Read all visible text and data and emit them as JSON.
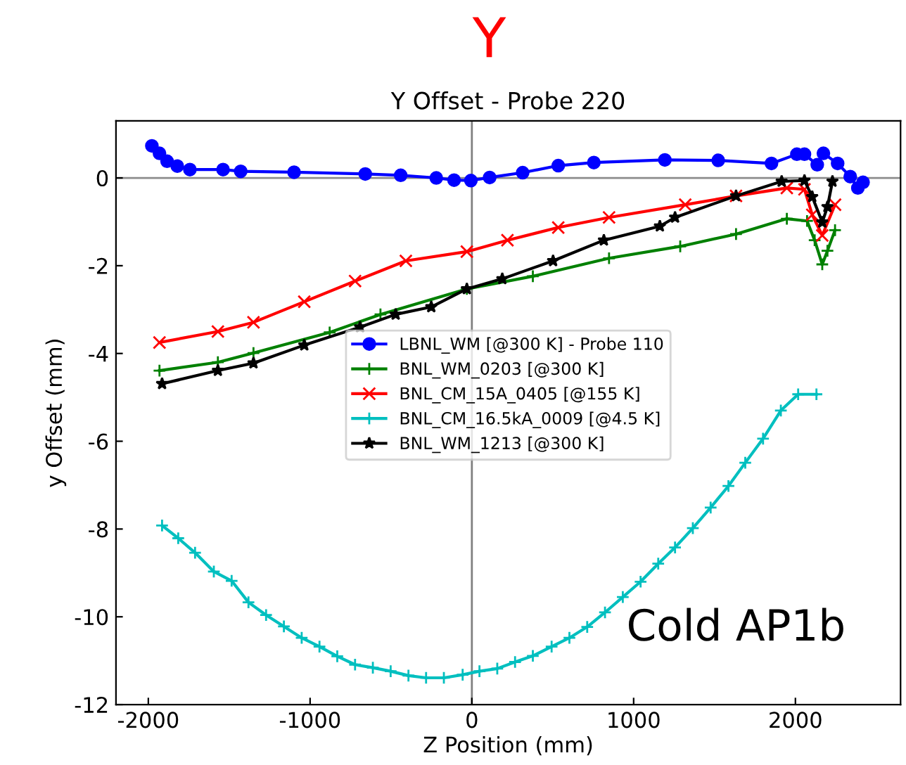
{
  "chart_data": {
    "type": "line",
    "title": "Y Offset - Probe 220",
    "xlabel": "Z Position (mm)",
    "ylabel": "y Offset (mm)",
    "annotations": [
      "Y",
      "Cold AP1b"
    ],
    "xlim": [
      -2200,
      2650
    ],
    "ylim": [
      -12,
      1.3
    ],
    "xticks": [
      -2000,
      -1000,
      0,
      1000,
      2000
    ],
    "yticks": [
      -12,
      -10,
      -8,
      -6,
      -4,
      -2,
      0
    ],
    "grid": false,
    "legend": "center",
    "ref_lines": [
      {
        "axis": "x",
        "value": 0,
        "label": null,
        "color": "#808080"
      },
      {
        "axis": "y",
        "value": 0,
        "label": null,
        "color": "#8c8c8c"
      }
    ],
    "series": [
      {
        "name": "LBNL_WM [@300 K] - Probe 110",
        "color": "#0000ff",
        "marker": "circle",
        "x": [
          -1978,
          -1931,
          -1884,
          -1821,
          -1743,
          -1538,
          -1429,
          -1099,
          -659,
          -440,
          -220,
          -110,
          -6,
          110,
          314,
          534,
          754,
          1193,
          1523,
          1852,
          2009,
          2056,
          2135,
          2173,
          2261,
          2339,
          2386,
          2418
        ],
        "values": [
          0.73,
          0.56,
          0.38,
          0.27,
          0.19,
          0.19,
          0.15,
          0.13,
          0.09,
          0.06,
          0,
          -0.05,
          -0.06,
          0.01,
          0.12,
          0.28,
          0.35,
          0.41,
          0.4,
          0.33,
          0.54,
          0.54,
          0.3,
          0.56,
          0.33,
          0.03,
          -0.23,
          -0.1
        ]
      },
      {
        "name": "BNL_WM_0203 [@300 K]",
        "color": "#008000",
        "marker": "cross",
        "x": [
          -1931,
          -1570,
          -1350,
          -879,
          -565,
          -31,
          377,
          848,
          1288,
          1633,
          1947,
          2072,
          2119,
          2166,
          2198,
          2245
        ],
        "values": [
          -4.39,
          -4.2,
          -3.99,
          -3.52,
          -3.11,
          -2.53,
          -2.24,
          -1.83,
          -1.56,
          -1.28,
          -0.93,
          -0.98,
          -1.42,
          -1.97,
          -1.66,
          -1.19
        ]
      },
      {
        "name": "BNL_CM_15A_0405 [@155 K]",
        "color": "#ff0000",
        "marker": "x",
        "x": [
          -1931,
          -1570,
          -1350,
          -1036,
          -722,
          -408,
          -31,
          220,
          534,
          848,
          1319,
          1633,
          1947,
          2056,
          2104,
          2166,
          2245
        ],
        "values": [
          -3.75,
          -3.5,
          -3.29,
          -2.82,
          -2.35,
          -1.89,
          -1.68,
          -1.42,
          -1.13,
          -0.9,
          -0.61,
          -0.41,
          -0.23,
          -0.26,
          -0.84,
          -1.31,
          -0.61
        ]
      },
      {
        "name": "BNL_CM_16.5kA_0009 [@4.5 K]",
        "color": "#00bfbf",
        "marker": "cross",
        "x": [
          -1915,
          -1815,
          -1711,
          -1595,
          -1485,
          -1381,
          -1272,
          -1162,
          -1052,
          -942,
          -832,
          -722,
          -612,
          -502,
          -392,
          -283,
          -173,
          -57,
          47,
          157,
          267,
          377,
          493,
          603,
          713,
          823,
          933,
          1043,
          1152,
          1256,
          1366,
          1476,
          1586,
          1690,
          1800,
          1910,
          2017,
          2130
        ],
        "values": [
          -7.92,
          -8.21,
          -8.54,
          -8.97,
          -9.18,
          -9.67,
          -9.96,
          -10.22,
          -10.48,
          -10.68,
          -10.9,
          -11.09,
          -11.16,
          -11.24,
          -11.34,
          -11.39,
          -11.39,
          -11.32,
          -11.24,
          -11.18,
          -11.03,
          -10.89,
          -10.68,
          -10.48,
          -10.23,
          -9.9,
          -9.55,
          -9.2,
          -8.79,
          -8.42,
          -7.98,
          -7.51,
          -7.02,
          -6.49,
          -5.94,
          -5.3,
          -4.93,
          -4.93
        ]
      },
      {
        "name": "BNL_WM_1213 [@300 K]",
        "color": "#000000",
        "marker": "star",
        "x": [
          -1915,
          -1570,
          -1350,
          -1036,
          -691,
          -471,
          -251,
          -31,
          188,
          502,
          816,
          1162,
          1256,
          1633,
          1915,
          2056,
          2104,
          2166,
          2198,
          2229
        ],
        "values": [
          -4.69,
          -4.39,
          -4.22,
          -3.81,
          -3.4,
          -3.11,
          -2.94,
          -2.53,
          -2.3,
          -1.89,
          -1.42,
          -1.1,
          -0.9,
          -0.41,
          -0.08,
          -0.06,
          -0.43,
          -1.01,
          -0.66,
          -0.08
        ]
      }
    ]
  }
}
